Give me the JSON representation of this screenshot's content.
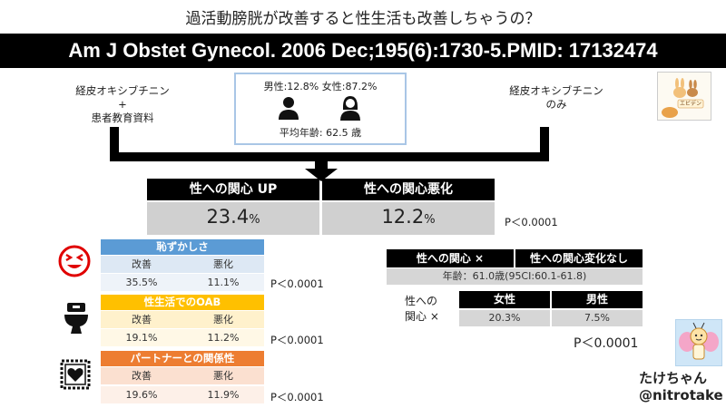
{
  "title": "過活動膀胱が改善すると性生活も改善しちゃうの？",
  "citation": "Am J Obstet Gynecol. 2006 Dec;195(6):1730-5.PMID:  17132474",
  "arms": {
    "left": [
      "経皮オキシブチニン",
      "+",
      "患者教育資料"
    ],
    "right": [
      "経皮オキシブチニン",
      "のみ"
    ]
  },
  "population": {
    "ratio": "男性:12.8% 女性:87.2%",
    "mean_age": "平均年齢: 62.5 歳",
    "icons": [
      "male-person-icon",
      "female-person-icon"
    ]
  },
  "logo_label": "エビデン",
  "main_result": {
    "col1_header": "性への関心 UP",
    "col2_header": "性への関心悪化",
    "col1_value": "23.4",
    "col2_value": "12.2",
    "unit": "%",
    "p_value": "P＜0.0001"
  },
  "subtables": [
    {
      "title": "恥ずかしさ",
      "icon": "embarrassed-face-icon",
      "header_color": "#5b9bd5",
      "band_color": "#dde8f4",
      "cols": [
        "改善",
        "悪化"
      ],
      "values": [
        "35.5%",
        "11.1%"
      ],
      "p": "P＜0.0001"
    },
    {
      "title": "性生活でのOAB",
      "icon": "toilet-icon",
      "header_color": "#ffc000",
      "band_color": "#fff1cc",
      "cols": [
        "改善",
        "悪化"
      ],
      "values": [
        "19.1%",
        "11.2%"
      ],
      "p": "P＜0.0001"
    },
    {
      "title": "パートナーとの関係性",
      "icon": "love-letter-stamp-icon",
      "header_color": "#ed7d31",
      "band_color": "#fbe0d0",
      "cols": [
        "改善",
        "悪化"
      ],
      "values": [
        "19.6%",
        "11.9%"
      ],
      "p": "P＜0.0001"
    }
  ],
  "age_table": {
    "h1": "性への関心 ×",
    "h2": "性への関心変化なし",
    "value": "年齢：61.0歳(95CI:60.1-61.8)"
  },
  "sex_table": {
    "row_label": [
      "性への",
      "関心 ×"
    ],
    "cols": [
      "女性",
      "男性"
    ],
    "values": [
      "20.3%",
      "7.5%"
    ],
    "p": "P＜0.0001"
  },
  "signature": {
    "name": "たけちゃん",
    "handle": "@nitrotake"
  }
}
